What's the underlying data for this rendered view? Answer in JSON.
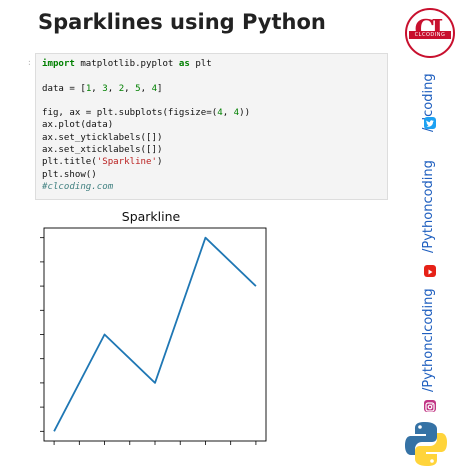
{
  "title": "Sparklines using Python",
  "code": {
    "prompt": ":",
    "lines": [
      [
        {
          "t": "import",
          "c": "kw"
        },
        {
          "t": " matplotlib.pyplot ",
          "c": ""
        },
        {
          "t": "as",
          "c": "kw"
        },
        {
          "t": " plt",
          "c": ""
        }
      ],
      [
        {
          "t": "",
          "c": ""
        }
      ],
      [
        {
          "t": "data = [",
          "c": ""
        },
        {
          "t": "1",
          "c": "num"
        },
        {
          "t": ", ",
          "c": ""
        },
        {
          "t": "3",
          "c": "num"
        },
        {
          "t": ", ",
          "c": ""
        },
        {
          "t": "2",
          "c": "num"
        },
        {
          "t": ", ",
          "c": ""
        },
        {
          "t": "5",
          "c": "num"
        },
        {
          "t": ", ",
          "c": ""
        },
        {
          "t": "4",
          "c": "num"
        },
        {
          "t": "]",
          "c": ""
        }
      ],
      [
        {
          "t": "",
          "c": ""
        }
      ],
      [
        {
          "t": "fig, ax = plt.subplots(figsize=(",
          "c": ""
        },
        {
          "t": "4",
          "c": "num"
        },
        {
          "t": ", ",
          "c": ""
        },
        {
          "t": "4",
          "c": "num"
        },
        {
          "t": "))",
          "c": ""
        }
      ],
      [
        {
          "t": "ax.plot(data)",
          "c": ""
        }
      ],
      [
        {
          "t": "ax.set_yticklabels([])",
          "c": ""
        }
      ],
      [
        {
          "t": "ax.set_xticklabels([])",
          "c": ""
        }
      ],
      [
        {
          "t": "plt.title(",
          "c": ""
        },
        {
          "t": "'Sparkline'",
          "c": "str"
        },
        {
          "t": ")",
          "c": ""
        }
      ],
      [
        {
          "t": "plt.show()",
          "c": ""
        }
      ],
      [
        {
          "t": "#clcoding.com",
          "c": "cm"
        }
      ]
    ]
  },
  "chart_data": {
    "type": "line",
    "title": "Sparkline",
    "x": [
      0,
      1,
      2,
      3,
      4
    ],
    "series": [
      {
        "values": [
          1,
          3,
          2,
          5,
          4
        ],
        "color": "#1f77b4"
      }
    ],
    "xlim": [
      -0.2,
      4.2
    ],
    "ylim": [
      0.8,
      5.2
    ],
    "xticks": [
      0,
      0.5,
      1,
      1.5,
      2,
      2.5,
      3,
      3.5,
      4
    ],
    "yticks": [
      1,
      1.5,
      2,
      2.5,
      3,
      3.5,
      4,
      4.5,
      5
    ],
    "tick_labels_hidden": true,
    "grid": false
  },
  "sidebar": {
    "logo_letters": "CL",
    "logo_band": "CLCODING",
    "twitter_handle": "/clcoding",
    "youtube_handle": "/Pythoncoding",
    "instagram_handle": "/Pythonclcoding",
    "colors": {
      "twitter": "#1da1f2",
      "youtube": "#e62117",
      "instagram": "#c13584",
      "text": "#1f5fbf"
    }
  }
}
